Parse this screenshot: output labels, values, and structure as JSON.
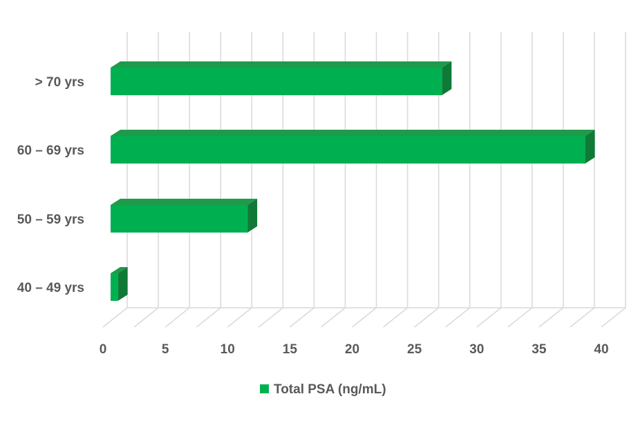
{
  "chart_data": {
    "type": "bar",
    "orientation": "horizontal",
    "three_d": true,
    "categories": [
      "> 70 yrs",
      "60 – 69 yrs",
      "50 – 59 yrs",
      "40 – 49 yrs"
    ],
    "series": [
      {
        "name": "Total PSA (ng/mL)",
        "values": [
          27.2,
          38.7,
          11.6,
          1.2
        ]
      }
    ],
    "x_ticks": [
      "0",
      "5",
      "10",
      "15",
      "20",
      "25",
      "30",
      "35",
      "40"
    ],
    "xlim": [
      0,
      40
    ],
    "grid": true,
    "legend": "bottom-center",
    "colors": {
      "bar_front": "#00b050",
      "bar_top": "#1f9a4a",
      "bar_side": "#0f7a37",
      "grid": "#d9d9d9"
    }
  }
}
